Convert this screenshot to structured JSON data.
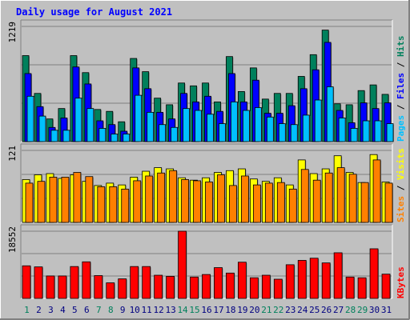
{
  "title": "Daily usage for August 2021",
  "colors": {
    "background": "#C0C0C0",
    "title": "#0000FF",
    "hits": "#00805C",
    "files": "#0000FF",
    "pages": "#00C0FF",
    "visits": "#FFFF00",
    "sites": "#FF8000",
    "kbytes": "#FF0000",
    "weekend_label": "#00805C",
    "weekday_label": "#000080"
  },
  "legend": {
    "top": [
      {
        "text": "Pages",
        "color": "#00C0FF"
      },
      {
        "text": " / ",
        "color": "#000000"
      },
      {
        "text": "Files",
        "color": "#0000FF"
      },
      {
        "text": " / ",
        "color": "#000000"
      },
      {
        "text": "Hits",
        "color": "#00805C"
      }
    ],
    "middle": [
      {
        "text": "Sites",
        "color": "#FF8000"
      },
      {
        "text": " / ",
        "color": "#000000"
      },
      {
        "text": "Visits",
        "color": "#FFFF00"
      }
    ],
    "bottom": [
      {
        "text": "KBytes",
        "color": "#FF0000"
      }
    ]
  },
  "chart_data": {
    "type": "bar",
    "title": "Daily usage for August 2021",
    "grid": true,
    "categories": [
      "1",
      "2",
      "3",
      "4",
      "5",
      "6",
      "7",
      "8",
      "9",
      "10",
      "11",
      "12",
      "13",
      "14",
      "15",
      "16",
      "17",
      "18",
      "19",
      "20",
      "21",
      "22",
      "23",
      "24",
      "25",
      "26",
      "27",
      "28",
      "29",
      "30",
      "31"
    ],
    "weekend_days": [
      "1",
      "7",
      "8",
      "14",
      "15",
      "21",
      "22",
      "28",
      "29"
    ],
    "panels": [
      {
        "name": "hits-files-pages",
        "max_label": "1219",
        "ylim": [
          0,
          1219
        ],
        "series": [
          {
            "name": "Hits",
            "color": "#00805C",
            "values": [
              910,
              510,
              240,
              350,
              910,
              730,
              340,
              320,
              210,
              880,
              740,
              460,
              390,
              620,
              590,
              620,
              420,
              900,
              530,
              780,
              450,
              510,
              510,
              690,
              920,
              1180,
              400,
              390,
              540,
              600,
              500
            ]
          },
          {
            "name": "Files",
            "color": "#0000FF",
            "values": [
              720,
              370,
              150,
              250,
              790,
              610,
              220,
              180,
              110,
              780,
              560,
              310,
              240,
              510,
              420,
              480,
              320,
              720,
              420,
              650,
              300,
              300,
              380,
              560,
              760,
              1050,
              330,
              200,
              410,
              350,
              410
            ]
          },
          {
            "name": "Pages",
            "color": "#00C0FF",
            "values": [
              480,
              270,
              120,
              120,
              460,
              350,
              140,
              80,
              80,
              490,
              310,
              180,
              150,
              350,
              330,
              290,
              190,
              420,
              330,
              360,
              260,
              190,
              180,
              280,
              440,
              580,
              250,
              140,
              220,
              220,
              190
            ]
          }
        ]
      },
      {
        "name": "visits-sites",
        "max_label": "121",
        "ylim": [
          0,
          121
        ],
        "series": [
          {
            "name": "Visits",
            "color": "#FFFF00",
            "values": [
              72,
              80,
              82,
              74,
              80,
              69,
              62,
              66,
              63,
              76,
              86,
              92,
              90,
              75,
              71,
              75,
              84,
              87,
              90,
              73,
              69,
              75,
              63,
              105,
              82,
              90,
              112,
              84,
              67,
              114,
              68
            ]
          },
          {
            "name": "Sites",
            "color": "#FF8000",
            "values": [
              66,
              69,
              76,
              76,
              84,
              77,
              60,
              60,
              56,
              70,
              78,
              83,
              87,
              72,
              70,
              68,
              80,
              62,
              78,
              63,
              66,
              67,
              56,
              89,
              71,
              83,
              92,
              81,
              67,
              105,
              66
            ]
          }
        ]
      },
      {
        "name": "kbytes",
        "max_label": "18552",
        "ylim": [
          0,
          18552
        ],
        "series": [
          {
            "name": "KBytes",
            "color": "#FF0000",
            "values": [
              9000,
              8700,
              6200,
              6200,
              8800,
              10100,
              6300,
              4300,
              5400,
              8800,
              8800,
              6400,
              6100,
              18552,
              5900,
              6600,
              8500,
              7000,
              10000,
              5700,
              6400,
              5300,
              9300,
              10500,
              11100,
              9800,
              12600,
              5900,
              5700,
              13700,
              6700
            ]
          }
        ]
      }
    ]
  }
}
